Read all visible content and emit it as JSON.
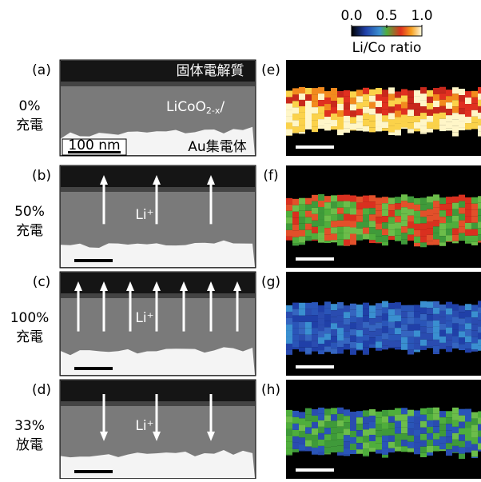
{
  "colorbar": {
    "ticks": [
      {
        "value": 0,
        "label": "0.0"
      },
      {
        "value": 0.5,
        "label": "0.5"
      },
      {
        "value": 1,
        "label": "1.0"
      }
    ],
    "range": [
      0,
      1
    ],
    "label": "Li/Co ratio"
  },
  "rows": [
    {
      "left_label": "(a)",
      "state": [
        "0%",
        "充電"
      ],
      "right_label": "(e)"
    },
    {
      "left_label": "(b)",
      "state": [
        "50%",
        "充電"
      ],
      "right_label": "(f)",
      "ion": "Li⁺"
    },
    {
      "left_label": "(c)",
      "state": [
        "100%",
        "充電"
      ],
      "right_label": "(g)",
      "ion": "Li⁺"
    },
    {
      "left_label": "(d)",
      "state": [
        "33%",
        "放電"
      ],
      "right_label": "(h)",
      "ion": "Li⁺"
    }
  ],
  "panel_a": {
    "electrolyte": "固体電解質",
    "cathode": "LiCoO",
    "cathode_sub": "2-x",
    "cathode_suffix": "/",
    "scale": "100 nm",
    "collector": "Au集電体"
  }
}
